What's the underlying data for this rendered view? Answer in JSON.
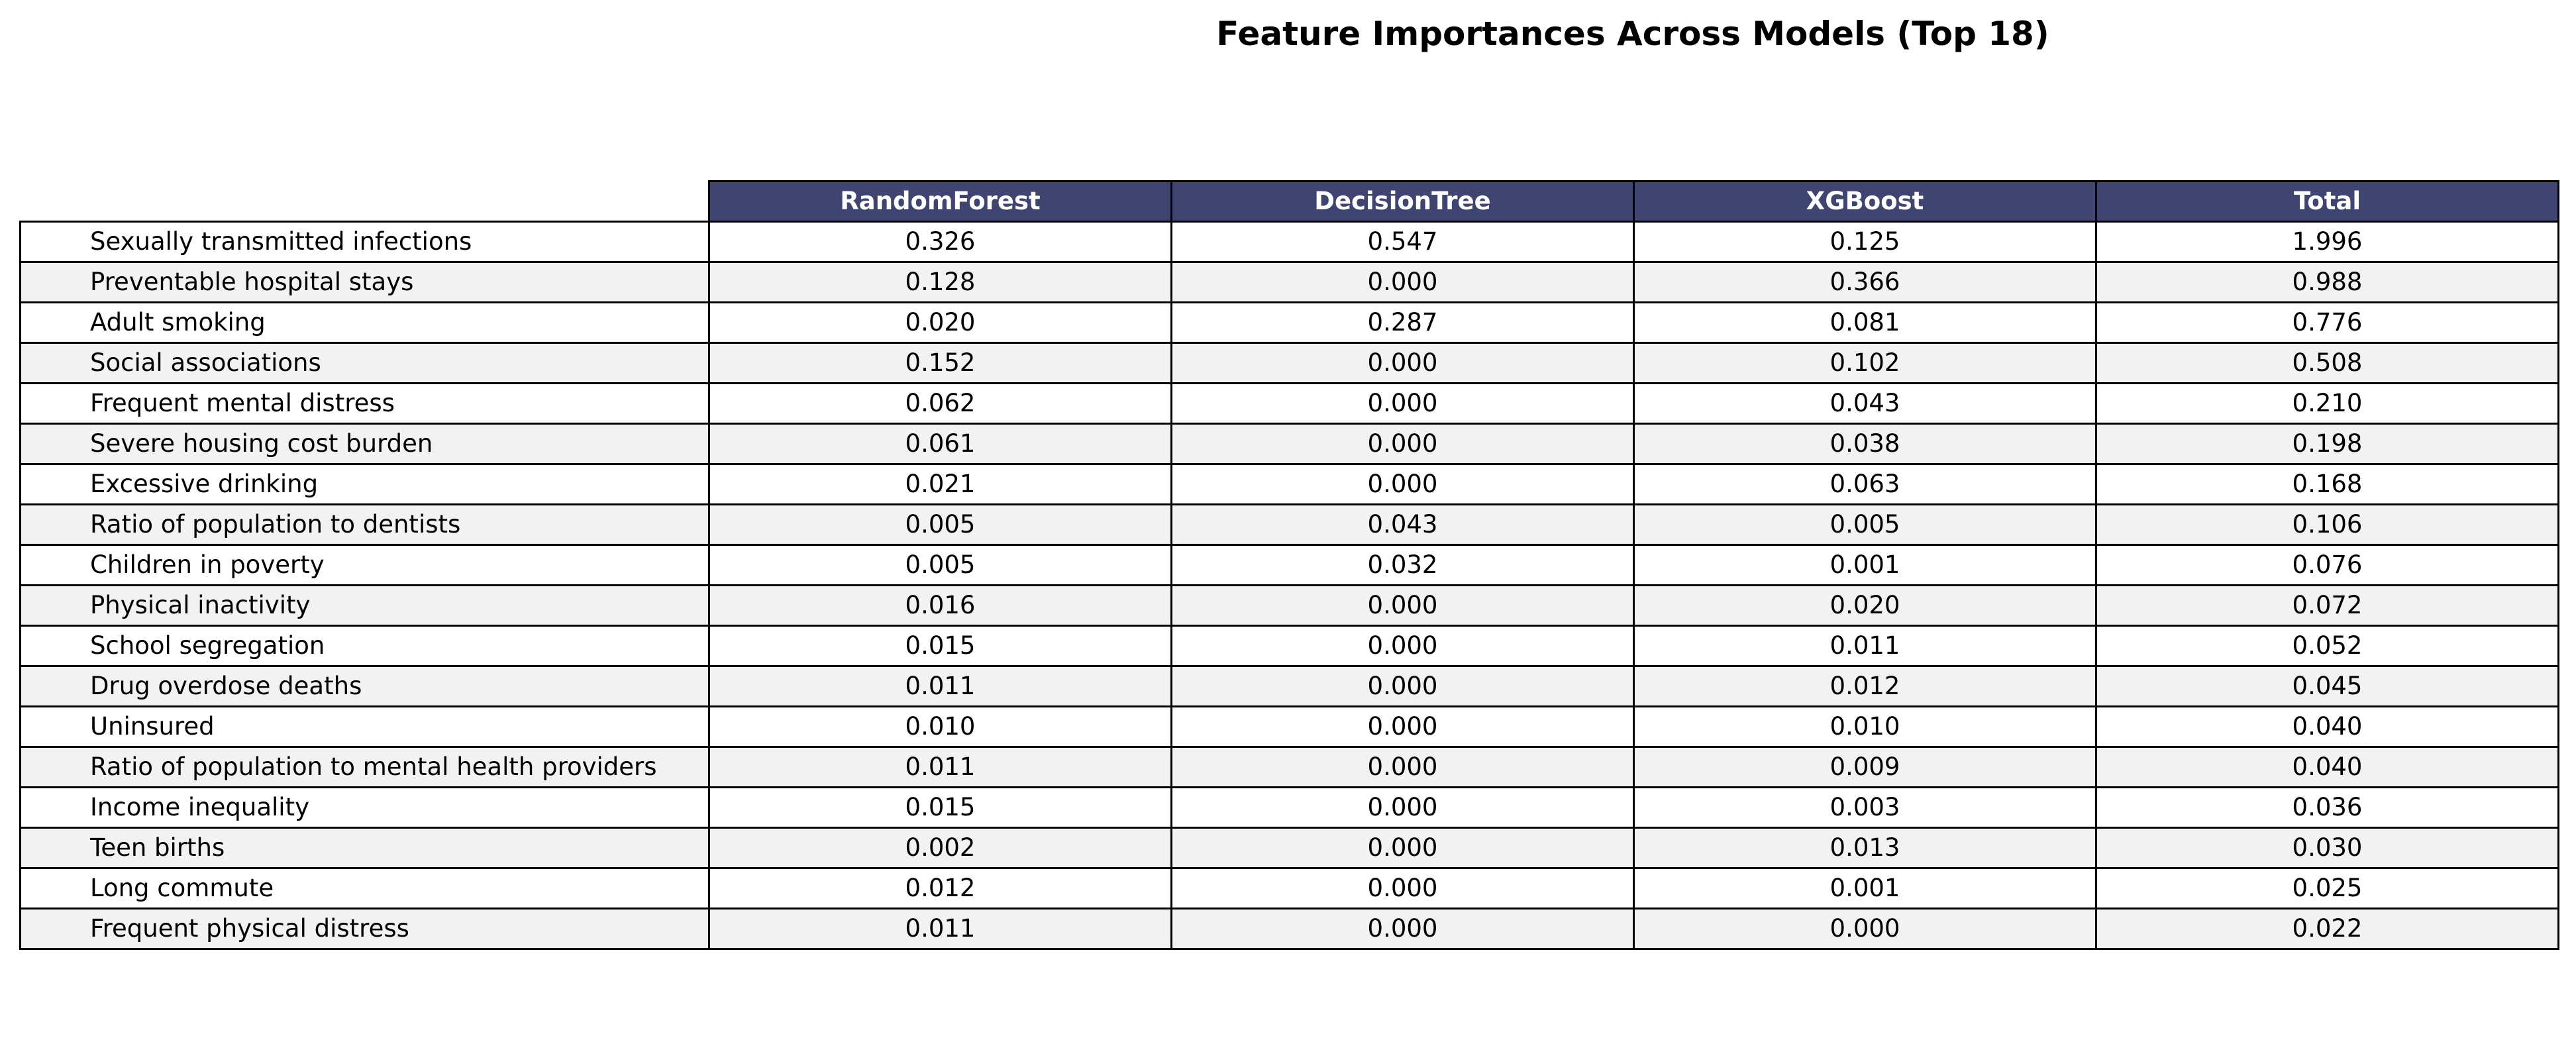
{
  "chart_data": {
    "type": "table",
    "title": "Feature Importances Across Models (Top 18)",
    "columns": [
      "RandomForest",
      "DecisionTree",
      "XGBoost",
      "Total"
    ],
    "header_color": "#3f4570",
    "stripe_color": "#f2f2f2",
    "rows": [
      {
        "label": "Sexually transmitted infections",
        "values": [
          "0.326",
          "0.547",
          "0.125",
          "1.996"
        ]
      },
      {
        "label": "Preventable hospital stays",
        "values": [
          "0.128",
          "0.000",
          "0.366",
          "0.988"
        ]
      },
      {
        "label": "Adult smoking",
        "values": [
          "0.020",
          "0.287",
          "0.081",
          "0.776"
        ]
      },
      {
        "label": "Social associations",
        "values": [
          "0.152",
          "0.000",
          "0.102",
          "0.508"
        ]
      },
      {
        "label": "Frequent mental distress",
        "values": [
          "0.062",
          "0.000",
          "0.043",
          "0.210"
        ]
      },
      {
        "label": "Severe housing cost burden",
        "values": [
          "0.061",
          "0.000",
          "0.038",
          "0.198"
        ]
      },
      {
        "label": "Excessive drinking",
        "values": [
          "0.021",
          "0.000",
          "0.063",
          "0.168"
        ]
      },
      {
        "label": "Ratio of population to dentists",
        "values": [
          "0.005",
          "0.043",
          "0.005",
          "0.106"
        ]
      },
      {
        "label": "Children in poverty",
        "values": [
          "0.005",
          "0.032",
          "0.001",
          "0.076"
        ]
      },
      {
        "label": "Physical inactivity",
        "values": [
          "0.016",
          "0.000",
          "0.020",
          "0.072"
        ]
      },
      {
        "label": "School segregation",
        "values": [
          "0.015",
          "0.000",
          "0.011",
          "0.052"
        ]
      },
      {
        "label": "Drug overdose deaths",
        "values": [
          "0.011",
          "0.000",
          "0.012",
          "0.045"
        ]
      },
      {
        "label": "Uninsured",
        "values": [
          "0.010",
          "0.000",
          "0.010",
          "0.040"
        ]
      },
      {
        "label": "Ratio of population to mental health providers",
        "values": [
          "0.011",
          "0.000",
          "0.009",
          "0.040"
        ]
      },
      {
        "label": "Income inequality",
        "values": [
          "0.015",
          "0.000",
          "0.003",
          "0.036"
        ]
      },
      {
        "label": "Teen births",
        "values": [
          "0.002",
          "0.000",
          "0.013",
          "0.030"
        ]
      },
      {
        "label": "Long commute",
        "values": [
          "0.012",
          "0.000",
          "0.001",
          "0.025"
        ]
      },
      {
        "label": "Frequent physical distress",
        "values": [
          "0.011",
          "0.000",
          "0.000",
          "0.022"
        ]
      }
    ]
  }
}
